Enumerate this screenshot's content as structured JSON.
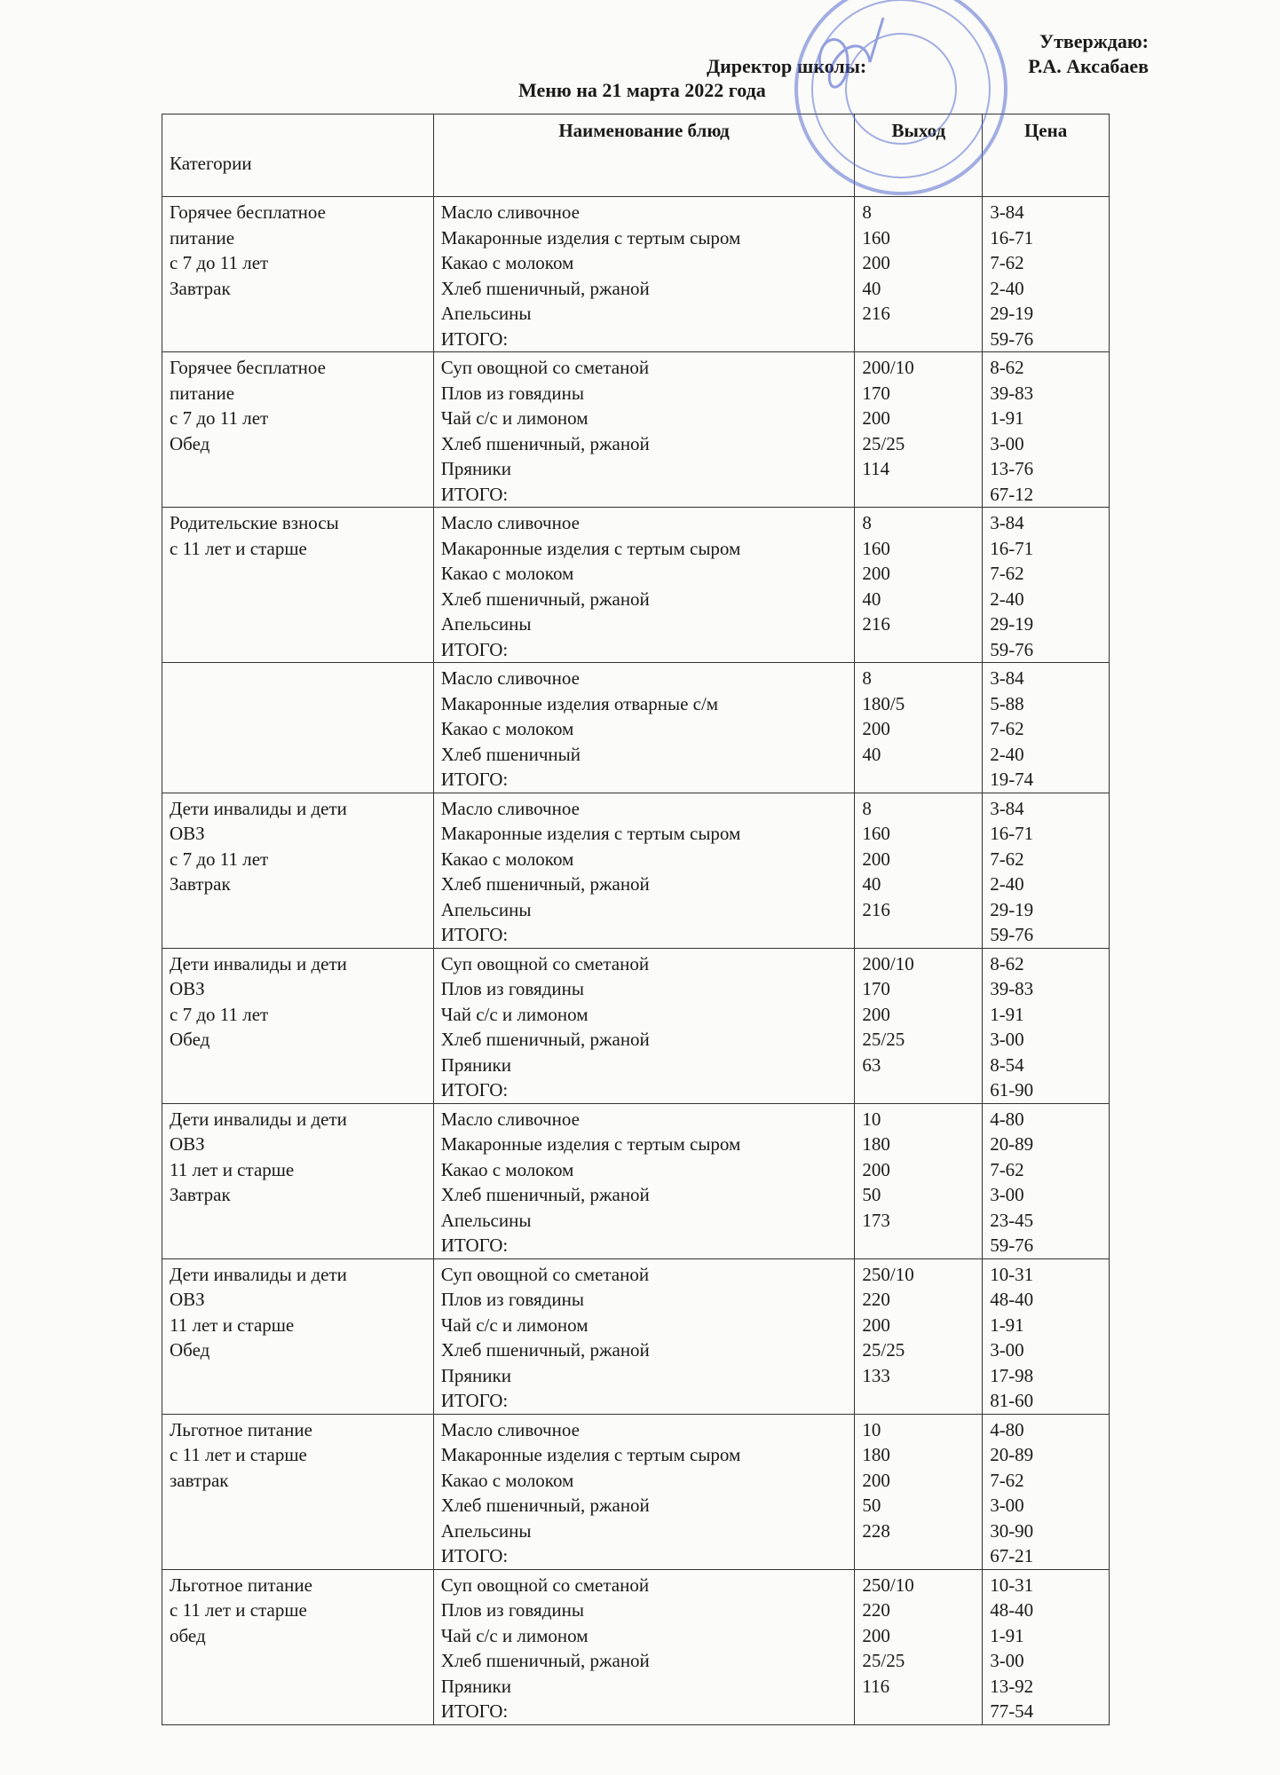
{
  "header": {
    "approve": "Утверждаю:",
    "director_label": "Директор школы:",
    "director_name": "Р.А. Аксабаев",
    "title": "Меню на 21  марта 2022 года"
  },
  "table": {
    "columns": [
      "Категории",
      "Наименование блюд",
      "Выход",
      "Цена"
    ],
    "rows": [
      {
        "category": [
          "Горячее бесплатное",
          "питание",
          "с 7 до 11 лет",
          "Завтрак"
        ],
        "items": [
          [
            "Масло сливочное",
            "8",
            "3-84"
          ],
          [
            "Макаронные изделия с тертым сыром",
            "160",
            "16-71"
          ],
          [
            "Какао с молоком",
            "200",
            "7-62"
          ],
          [
            "Хлеб пшеничный, ржаной",
            "40",
            "2-40"
          ],
          [
            "Апельсины",
            "216",
            "29-19"
          ],
          [
            "ИТОГО:",
            "",
            "59-76"
          ]
        ]
      },
      {
        "category": [
          "Горячее бесплатное",
          "питание",
          "с 7 до 11 лет",
          "Обед"
        ],
        "items": [
          [
            "Суп овощной со сметаной",
            "200/10",
            "8-62"
          ],
          [
            "Плов из говядины",
            "170",
            "39-83"
          ],
          [
            "Чай с/с и лимоном",
            "200",
            "1-91"
          ],
          [
            "Хлеб пшеничный, ржаной",
            "25/25",
            "3-00"
          ],
          [
            "Пряники",
            "114",
            "13-76"
          ],
          [
            "ИТОГО:",
            "",
            "67-12"
          ]
        ]
      },
      {
        "category": [
          "Родительские взносы",
          "с 11 лет и старше"
        ],
        "items": [
          [
            "Масло сливочное",
            "8",
            "3-84"
          ],
          [
            "Макаронные изделия с тертым сыром",
            "160",
            "16-71"
          ],
          [
            "Какао с молоком",
            "200",
            "7-62"
          ],
          [
            "Хлеб пшеничный, ржаной",
            "40",
            "2-40"
          ],
          [
            "Апельсины",
            "216",
            "29-19"
          ],
          [
            "ИТОГО:",
            "",
            "59-76"
          ]
        ]
      },
      {
        "category": [],
        "items": [
          [
            "Масло сливочное",
            "8",
            "3-84"
          ],
          [
            "Макаронные изделия отварные с/м",
            "180/5",
            "5-88"
          ],
          [
            "Какао с молоком",
            "200",
            "7-62"
          ],
          [
            "Хлеб пшеничный",
            "40",
            "2-40"
          ],
          [
            "ИТОГО:",
            "",
            "19-74"
          ]
        ]
      },
      {
        "category": [
          "Дети инвалиды и дети",
          "ОВЗ",
          "с 7 до 11 лет",
          "Завтрак"
        ],
        "items": [
          [
            "Масло сливочное",
            "8",
            "3-84"
          ],
          [
            "Макаронные изделия с тертым сыром",
            "160",
            "16-71"
          ],
          [
            "Какао с молоком",
            "200",
            "7-62"
          ],
          [
            "Хлеб пшеничный, ржаной",
            "40",
            "2-40"
          ],
          [
            "Апельсины",
            "216",
            "29-19"
          ],
          [
            "ИТОГО:",
            "",
            "59-76"
          ]
        ]
      },
      {
        "category": [
          "Дети инвалиды и дети",
          "ОВЗ",
          "с 7 до 11 лет",
          "Обед"
        ],
        "items": [
          [
            "Суп овощной со сметаной",
            "200/10",
            "8-62"
          ],
          [
            "Плов из говядины",
            "170",
            "39-83"
          ],
          [
            "Чай с/с и лимоном",
            "200",
            "1-91"
          ],
          [
            "Хлеб пшеничный, ржаной",
            "25/25",
            "3-00"
          ],
          [
            "Пряники",
            "63",
            "8-54"
          ],
          [
            "ИТОГО:",
            "",
            "61-90"
          ]
        ]
      },
      {
        "category": [
          "Дети инвалиды и дети",
          "ОВЗ",
          "11 лет и старше",
          "Завтрак"
        ],
        "items": [
          [
            "Масло сливочное",
            "10",
            "4-80"
          ],
          [
            "Макаронные изделия с тертым сыром",
            "180",
            "20-89"
          ],
          [
            "Какао с молоком",
            "200",
            "7-62"
          ],
          [
            "Хлеб пшеничный, ржаной",
            "50",
            "3-00"
          ],
          [
            "Апельсины",
            "173",
            "23-45"
          ],
          [
            "ИТОГО:",
            "",
            "59-76"
          ]
        ]
      },
      {
        "category": [
          "Дети инвалиды и дети",
          "ОВЗ",
          "11 лет и старше",
          "Обед"
        ],
        "items": [
          [
            "Суп овощной со сметаной",
            "250/10",
            "10-31"
          ],
          [
            "Плов из говядины",
            "220",
            "48-40"
          ],
          [
            "Чай с/с и лимоном",
            "200",
            "1-91"
          ],
          [
            "Хлеб пшеничный, ржаной",
            "25/25",
            "3-00"
          ],
          [
            "Пряники",
            "133",
            "17-98"
          ],
          [
            "ИТОГО:",
            "",
            "81-60"
          ]
        ]
      },
      {
        "category": [
          "Льготное питание",
          "с 11 лет и старше",
          "завтрак"
        ],
        "items": [
          [
            "Масло сливочное",
            "10",
            "4-80"
          ],
          [
            "Макаронные изделия с тертым сыром",
            "180",
            "20-89"
          ],
          [
            "Какао с молоком",
            "200",
            "7-62"
          ],
          [
            "Хлеб пшеничный, ржаной",
            "50",
            "3-00"
          ],
          [
            "Апельсины",
            "228",
            "30-90"
          ],
          [
            "ИТОГО:",
            "",
            "67-21"
          ]
        ]
      },
      {
        "category": [
          "Льготное питание",
          "с 11 лет и старше",
          "обед"
        ],
        "items": [
          [
            "Суп овощной со сметаной",
            "250/10",
            "10-31"
          ],
          [
            "Плов из говядины",
            "220",
            "48-40"
          ],
          [
            "Чай с/с и лимоном",
            "200",
            "1-91"
          ],
          [
            "Хлеб пшеничный, ржаной",
            "25/25",
            "3-00"
          ],
          [
            "Пряники",
            "116",
            "13-92"
          ],
          [
            "ИТОГО:",
            "",
            "77-54"
          ]
        ]
      }
    ]
  },
  "colors": {
    "stamp": "#5a6fd0",
    "ink": "#1a1a1a"
  }
}
